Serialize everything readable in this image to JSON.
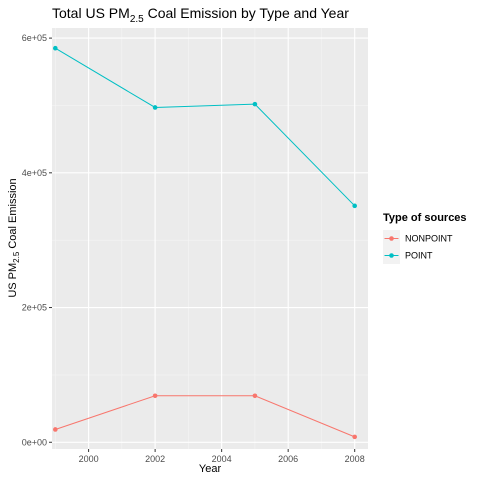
{
  "chart_data": {
    "type": "line",
    "title_main": "Total US PM",
    "title_sub": "2.5",
    "title_rest": " Coal Emission by Type and Year",
    "xlabel": "Year",
    "ylabel_main": "US PM",
    "ylabel_sub": "2.5",
    "ylabel_rest": " Coal Emission",
    "x": [
      1999,
      2002,
      2005,
      2008
    ],
    "xlim": [
      1998.9,
      2008.4
    ],
    "ylim": [
      -10000,
      615000
    ],
    "x_ticks": [
      2000,
      2002,
      2004,
      2006,
      2008
    ],
    "x_tick_labels": [
      "2000",
      "2002",
      "2004",
      "2006",
      "2008"
    ],
    "y_ticks": [
      0,
      200000,
      400000,
      600000
    ],
    "y_tick_labels": [
      "0e+00",
      "2e+05",
      "4e+05",
      "6e+05"
    ],
    "grid": true,
    "legend": {
      "title": "Type of sources",
      "position": "right"
    },
    "series": [
      {
        "name": "NONPOINT",
        "color": "#F8766D",
        "values": [
          19000,
          69000,
          69000,
          8000
        ]
      },
      {
        "name": "POINT",
        "color": "#00BFC4",
        "values": [
          585000,
          497000,
          502000,
          351000
        ]
      }
    ]
  }
}
